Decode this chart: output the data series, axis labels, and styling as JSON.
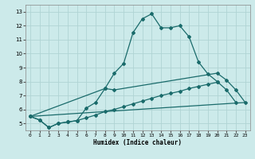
{
  "xlabel": "Humidex (Indice chaleur)",
  "bg_color": "#cceaea",
  "grid_color": "#b0d4d4",
  "line_color": "#1a6b6b",
  "xlim": [
    -0.5,
    23.5
  ],
  "ylim": [
    4.5,
    13.5
  ],
  "xticks": [
    0,
    1,
    2,
    3,
    4,
    5,
    6,
    7,
    8,
    9,
    10,
    11,
    12,
    13,
    14,
    15,
    16,
    17,
    18,
    19,
    20,
    21,
    22,
    23
  ],
  "yticks": [
    5,
    6,
    7,
    8,
    9,
    10,
    11,
    12,
    13
  ],
  "line1_x": [
    0,
    1,
    2,
    3,
    4,
    5,
    6,
    7,
    8,
    9,
    10,
    11,
    12,
    13,
    14,
    15,
    16,
    17,
    18,
    19,
    20,
    21,
    22
  ],
  "line1_y": [
    5.5,
    5.25,
    4.7,
    5.0,
    5.1,
    5.2,
    6.1,
    6.5,
    7.5,
    8.6,
    9.3,
    11.5,
    12.5,
    12.85,
    11.85,
    11.85,
    12.0,
    11.2,
    9.4,
    8.55,
    8.0,
    7.4,
    6.5
  ],
  "line2_x": [
    0,
    1,
    2,
    3,
    4,
    5,
    6,
    7,
    8,
    9,
    10,
    11,
    12,
    13,
    14,
    15,
    16,
    17,
    18,
    19,
    20
  ],
  "line2_y": [
    5.5,
    5.25,
    4.7,
    5.0,
    5.1,
    5.2,
    5.4,
    5.6,
    5.85,
    6.0,
    6.2,
    6.4,
    6.6,
    6.8,
    7.0,
    7.15,
    7.3,
    7.5,
    7.65,
    7.8,
    7.95
  ],
  "line3_x": [
    0,
    23
  ],
  "line3_y": [
    5.5,
    6.5
  ],
  "line4_x": [
    0,
    8,
    9,
    20,
    21,
    22,
    23
  ],
  "line4_y": [
    5.5,
    7.5,
    7.4,
    8.6,
    8.1,
    7.4,
    6.5
  ]
}
